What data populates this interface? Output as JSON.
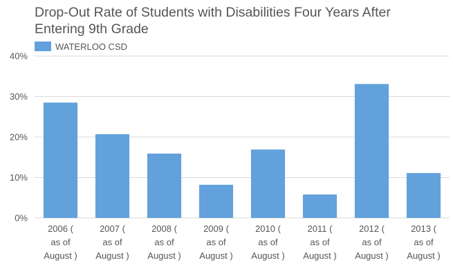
{
  "chart_data": {
    "type": "bar",
    "title": "Drop-Out Rate of Students with Disabilities Four Years After Entering 9th Grade",
    "xlabel": "",
    "ylabel": "",
    "categories": [
      [
        "2006 (",
        "as of",
        "August )"
      ],
      [
        "2007 (",
        "as of",
        "August )"
      ],
      [
        "2008 (",
        "as of",
        "August )"
      ],
      [
        "2009 (",
        "as of",
        "August )"
      ],
      [
        "2010 (",
        "as of",
        "August )"
      ],
      [
        "2011 (",
        "as of",
        "August )"
      ],
      [
        "2012 (",
        "as of",
        "August )"
      ],
      [
        "2013 (",
        "as of",
        "August )"
      ]
    ],
    "series": [
      {
        "name": "WATERLOO CSD",
        "values": [
          28.5,
          20.7,
          15.9,
          8.2,
          16.9,
          5.8,
          33.1,
          11.1
        ]
      }
    ],
    "yticks": [
      "0%",
      "10%",
      "20%",
      "30%",
      "40%"
    ],
    "ylim": [
      0,
      40
    ],
    "grid": true,
    "legend": "top-left",
    "colors": {
      "bar": "#62a1db",
      "grid": "#d9d9d9",
      "text": "#555555"
    }
  }
}
